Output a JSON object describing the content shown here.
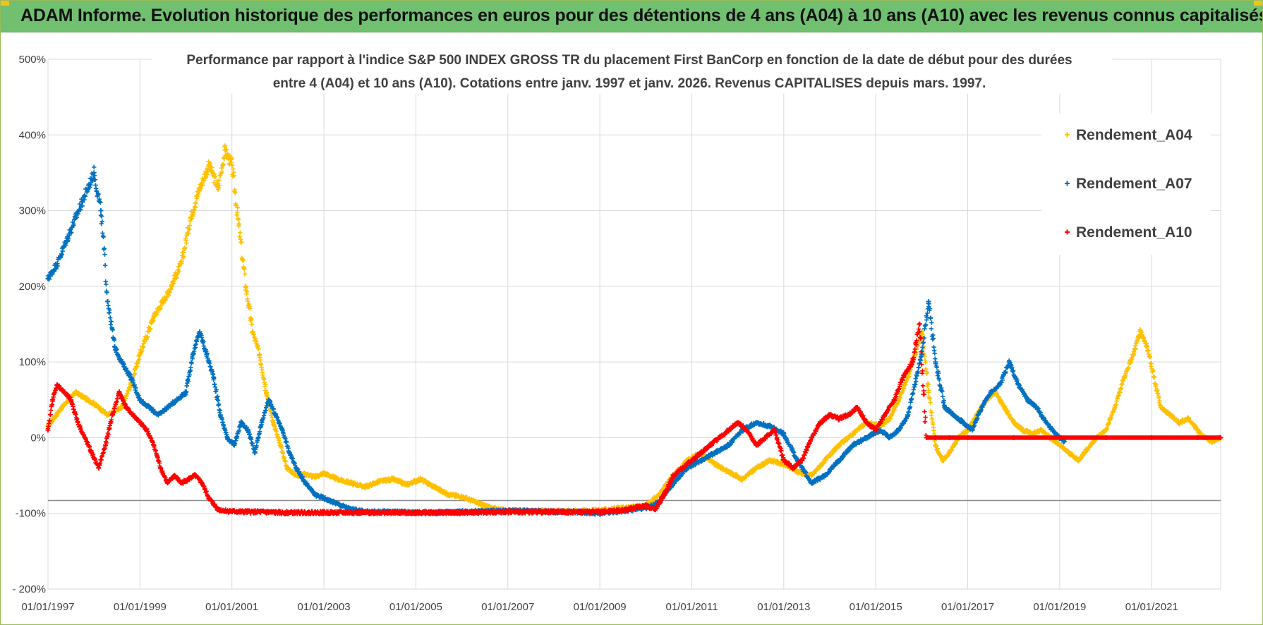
{
  "header": {
    "title": "ADAM Informe. Evolution historique des performances en euros pour des détentions de 4 ans (A04) à 10 ans (A10) avec les revenus connus capitalisés"
  },
  "colors": {
    "header_bg": "#70c070",
    "grid": "#d9d9d9",
    "series_A04": "#ffc000",
    "series_A07": "#0070c0",
    "series_A10": "#ff0000"
  },
  "chart_data": {
    "type": "scatter",
    "title": "Performance par rapport à l'indice S&P 500 INDEX GROSS TR  du placement First BanCorp en fonction de la date de début pour des durées entre 4 (A04) et 10 ans (A10). Cotations entre janv. 1997 et janv. 2026. Revenus CAPITALISES depuis mars. 1997.",
    "title_lines": [
      "Performance par rapport à l'indice S&P 500 INDEX GROSS TR  du placement First BanCorp en fonction de la date de début pour des durées",
      "entre 4 (A04) et 10 ans (A10). Cotations entre janv. 1997 et janv. 2026. Revenus CAPITALISES depuis mars. 1997."
    ],
    "xlabel": "",
    "ylabel": "",
    "xlim": [
      1997.0,
      2022.5
    ],
    "ylim": [
      -200,
      500
    ],
    "grid": true,
    "legend_position": "top-right",
    "y_ticks": [
      -200,
      -100,
      0,
      100,
      200,
      300,
      400,
      500
    ],
    "y_tick_labels": [
      "- 200%",
      "-100%",
      "0%",
      "100%",
      "200%",
      "300%",
      "400%",
      "500%"
    ],
    "x_ticks": [
      1997,
      1999,
      2001,
      2003,
      2005,
      2007,
      2009,
      2011,
      2013,
      2015,
      2017,
      2019,
      2021
    ],
    "x_tick_labels": [
      "01/01/1997",
      "01/01/1999",
      "01/01/2001",
      "01/01/2003",
      "01/01/2005",
      "01/01/2007",
      "01/01/2009",
      "01/01/2011",
      "01/01/2013",
      "01/01/2015",
      "01/01/2017",
      "01/01/2019",
      "01/01/2021"
    ],
    "reference_line": -83,
    "series": [
      {
        "name": "Rendement_A04",
        "x": [
          1997.0,
          1997.3,
          1997.6,
          1998.0,
          1998.3,
          1998.6,
          1998.8,
          1999.0,
          1999.3,
          1999.6,
          1999.9,
          2000.1,
          2000.3,
          2000.5,
          2000.7,
          2000.85,
          2001.0,
          2001.15,
          2001.3,
          2001.45,
          2001.6,
          2001.75,
          2001.9,
          2002.05,
          2002.2,
          2002.4,
          2002.6,
          2002.8,
          2003.0,
          2003.3,
          2003.6,
          2003.9,
          2004.2,
          2004.5,
          2004.8,
          2005.1,
          2005.4,
          2005.7,
          2006.0,
          2006.3,
          2006.6,
          2006.9,
          2007.2,
          2007.5,
          2008.0,
          2008.5,
          2009.0,
          2009.5,
          2010.0,
          2010.3,
          2010.6,
          2010.9,
          2011.2,
          2011.5,
          2011.8,
          2012.1,
          2012.4,
          2012.7,
          2013.0,
          2013.3,
          2013.6,
          2013.9,
          2014.2,
          2014.5,
          2014.8,
          2015.1,
          2015.3,
          2015.5,
          2015.7,
          2015.85,
          2016.0,
          2016.15,
          2016.3,
          2016.45,
          2016.6,
          2016.8,
          2017.0,
          2017.2,
          2017.4,
          2017.6,
          2017.8,
          2018.0,
          2018.2,
          2018.4,
          2018.6,
          2018.8,
          2019.0,
          2019.2,
          2019.4,
          2019.6,
          2019.8,
          2020.0,
          2020.2,
          2020.4,
          2020.6,
          2020.75,
          2020.9,
          2021.05,
          2021.2,
          2021.4,
          2021.6,
          2021.8,
          2022.0,
          2022.15,
          2022.3,
          2022.5
        ],
        "y": [
          15,
          40,
          60,
          45,
          30,
          40,
          70,
          110,
          160,
          190,
          230,
          290,
          330,
          360,
          330,
          380,
          360,
          280,
          200,
          140,
          110,
          60,
          20,
          -10,
          -40,
          -50,
          -48,
          -52,
          -47,
          -55,
          -60,
          -65,
          -58,
          -55,
          -62,
          -55,
          -65,
          -75,
          -78,
          -85,
          -92,
          -96,
          -97,
          -97,
          -97,
          -97,
          -96,
          -93,
          -90,
          -75,
          -50,
          -30,
          -20,
          -35,
          -45,
          -55,
          -40,
          -30,
          -35,
          -45,
          -50,
          -30,
          -10,
          5,
          20,
          15,
          25,
          50,
          80,
          110,
          140,
          60,
          -10,
          -30,
          -20,
          0,
          10,
          30,
          50,
          60,
          40,
          20,
          10,
          5,
          10,
          0,
          -10,
          -20,
          -30,
          -15,
          0,
          10,
          40,
          80,
          110,
          140,
          120,
          80,
          40,
          30,
          20,
          25,
          10,
          0,
          -5,
          0
        ]
      },
      {
        "name": "Rendement_A07",
        "x": [
          1997.0,
          1997.2,
          1997.4,
          1997.6,
          1997.8,
          1998.0,
          1998.15,
          1998.3,
          1998.45,
          1998.6,
          1998.8,
          1999.0,
          1999.2,
          1999.4,
          1999.6,
          1999.8,
          2000.0,
          2000.15,
          2000.3,
          2000.45,
          2000.6,
          2000.75,
          2000.9,
          2001.05,
          2001.2,
          2001.35,
          2001.5,
          2001.65,
          2001.8,
          2001.95,
          2002.1,
          2002.25,
          2002.4,
          2002.6,
          2002.8,
          2003.0,
          2003.2,
          2003.4,
          2003.6,
          2003.9,
          2004.2,
          2004.6,
          2005.0,
          2005.5,
          2006.0,
          2006.5,
          2007.0,
          2007.5,
          2008.0,
          2008.5,
          2009.0,
          2009.5,
          2009.8,
          2010.0,
          2010.3,
          2010.6,
          2010.9,
          2011.2,
          2011.5,
          2011.8,
          2012.1,
          2012.4,
          2012.7,
          2013.0,
          2013.3,
          2013.6,
          2013.9,
          2014.2,
          2014.5,
          2014.8,
          2015.1,
          2015.3,
          2015.5,
          2015.7,
          2015.85,
          2016.0,
          2016.15,
          2016.3,
          2016.5,
          2016.7,
          2016.9,
          2017.1,
          2017.3,
          2017.5,
          2017.7,
          2017.9,
          2018.1,
          2018.3,
          2018.5,
          2018.7,
          2018.9,
          2019.0,
          2019.1
        ],
        "y": [
          210,
          230,
          260,
          290,
          320,
          350,
          300,
          180,
          120,
          100,
          80,
          50,
          40,
          30,
          40,
          50,
          60,
          110,
          140,
          110,
          80,
          30,
          0,
          -10,
          20,
          10,
          -20,
          20,
          50,
          30,
          10,
          -20,
          -40,
          -60,
          -75,
          -80,
          -85,
          -90,
          -95,
          -98,
          -98,
          -98,
          -99,
          -99,
          -98,
          -97,
          -97,
          -97,
          -98,
          -98,
          -100,
          -97,
          -94,
          -93,
          -85,
          -60,
          -40,
          -30,
          -20,
          -10,
          10,
          20,
          15,
          5,
          -30,
          -60,
          -50,
          -30,
          -10,
          0,
          10,
          0,
          10,
          30,
          70,
          110,
          180,
          100,
          40,
          30,
          20,
          10,
          40,
          60,
          70,
          100,
          70,
          50,
          40,
          20,
          5,
          0,
          -5
        ]
      },
      {
        "name": "Rendement_A10",
        "x": [
          1997.0,
          1997.1,
          1997.2,
          1997.35,
          1997.5,
          1997.65,
          1997.8,
          1997.95,
          1998.1,
          1998.25,
          1998.4,
          1998.55,
          1998.7,
          1998.85,
          1999.0,
          1999.15,
          1999.3,
          1999.45,
          1999.6,
          1999.75,
          1999.9,
          2000.05,
          2000.2,
          2000.35,
          2000.5,
          2000.7,
          2000.9,
          2001.2,
          2001.6,
          2002.0,
          2003.0,
          2004.0,
          2005.0,
          2006.0,
          2007.0,
          2008.0,
          2009.0,
          2009.5,
          2009.8,
          2010.0,
          2010.2,
          2010.4,
          2010.6,
          2010.8,
          2011.0,
          2011.2,
          2011.4,
          2011.6,
          2011.8,
          2012.0,
          2012.2,
          2012.4,
          2012.6,
          2012.8,
          2013.0,
          2013.2,
          2013.4,
          2013.6,
          2013.8,
          2014.0,
          2014.2,
          2014.4,
          2014.6,
          2014.8,
          2015.0,
          2015.2,
          2015.4,
          2015.6,
          2015.8,
          2015.95,
          2016.1,
          2016.3,
          2016.6,
          2017.0,
          2018.0,
          2019.0,
          2020.0,
          2021.0,
          2022.0,
          2022.5
        ],
        "y": [
          10,
          50,
          70,
          60,
          50,
          20,
          0,
          -20,
          -40,
          -10,
          30,
          60,
          40,
          30,
          20,
          10,
          -10,
          -40,
          -60,
          -50,
          -60,
          -55,
          -50,
          -60,
          -80,
          -95,
          -97,
          -98,
          -98,
          -99,
          -99,
          -99,
          -99,
          -99,
          -98,
          -98,
          -98,
          -96,
          -92,
          -90,
          -95,
          -75,
          -50,
          -40,
          -30,
          -20,
          -10,
          0,
          10,
          20,
          10,
          -10,
          0,
          10,
          -30,
          -40,
          -30,
          0,
          20,
          30,
          25,
          30,
          40,
          20,
          10,
          30,
          50,
          80,
          100,
          150,
          0,
          0,
          0,
          0,
          0,
          0,
          0,
          0,
          0,
          0
        ]
      }
    ]
  }
}
